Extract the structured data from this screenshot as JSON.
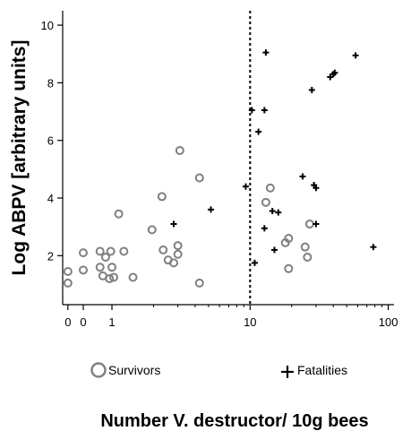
{
  "chart_data": {
    "type": "scatter",
    "ylabel": "Log ABPV [arbitrary units]",
    "xlabel": "Number V. destructor/ 10g bees",
    "x_scale": "log",
    "x_zero_labels": [
      "0",
      "0"
    ],
    "x_tick_values": [
      1,
      10,
      100
    ],
    "x_tick_labels": [
      "1",
      "10",
      "100"
    ],
    "xlim": [
      0.44,
      110
    ],
    "y_tick_values": [
      2,
      4,
      6,
      8,
      10
    ],
    "y_tick_labels": [
      "2",
      "4",
      "6",
      "8",
      "10"
    ],
    "ylim": [
      0.3,
      10.5
    ],
    "threshold_x": 10,
    "legend_position": "bottom",
    "colors": {
      "survivors": "#808080",
      "fatalities": "#000000",
      "threshold": "#000000"
    },
    "series": [
      {
        "name": "Survivors",
        "marker": "circle",
        "points": [
          [
            0.48,
            1.45
          ],
          [
            0.48,
            1.05
          ],
          [
            0.62,
            2.1
          ],
          [
            0.62,
            1.5
          ],
          [
            0.82,
            2.15
          ],
          [
            0.82,
            1.6
          ],
          [
            0.86,
            1.3
          ],
          [
            0.9,
            1.95
          ],
          [
            0.96,
            1.2
          ],
          [
            0.98,
            2.15
          ],
          [
            1.0,
            1.6
          ],
          [
            1.03,
            1.25
          ],
          [
            1.12,
            3.45
          ],
          [
            1.22,
            2.15
          ],
          [
            1.42,
            1.25
          ],
          [
            1.95,
            2.9
          ],
          [
            2.3,
            4.05
          ],
          [
            2.35,
            2.2
          ],
          [
            2.55,
            1.85
          ],
          [
            2.8,
            1.75
          ],
          [
            3.0,
            2.35
          ],
          [
            3.0,
            2.05
          ],
          [
            3.1,
            5.65
          ],
          [
            4.3,
            4.7
          ],
          [
            4.3,
            1.05
          ],
          [
            13.0,
            3.85
          ],
          [
            14.0,
            4.35
          ],
          [
            18.0,
            2.45
          ],
          [
            19.0,
            2.6
          ],
          [
            19.0,
            1.55
          ],
          [
            25.0,
            2.3
          ],
          [
            26.0,
            1.95
          ],
          [
            27.0,
            3.1
          ]
        ]
      },
      {
        "name": "Fatalities",
        "marker": "plus",
        "points": [
          [
            2.8,
            3.1
          ],
          [
            5.2,
            3.6
          ],
          [
            9.3,
            4.4
          ],
          [
            10.3,
            7.05
          ],
          [
            10.8,
            1.75
          ],
          [
            11.5,
            6.3
          ],
          [
            12.7,
            2.95
          ],
          [
            12.7,
            7.05
          ],
          [
            13.0,
            9.05
          ],
          [
            14.5,
            3.55
          ],
          [
            15.0,
            2.2
          ],
          [
            16.0,
            3.5
          ],
          [
            24.0,
            4.75
          ],
          [
            28.0,
            7.75
          ],
          [
            29.0,
            4.45
          ],
          [
            30.0,
            4.35
          ],
          [
            30.0,
            3.1
          ],
          [
            38.0,
            8.2
          ],
          [
            40.0,
            8.3
          ],
          [
            41.0,
            8.35
          ],
          [
            58.0,
            8.95
          ],
          [
            78.0,
            2.3
          ]
        ]
      }
    ]
  }
}
